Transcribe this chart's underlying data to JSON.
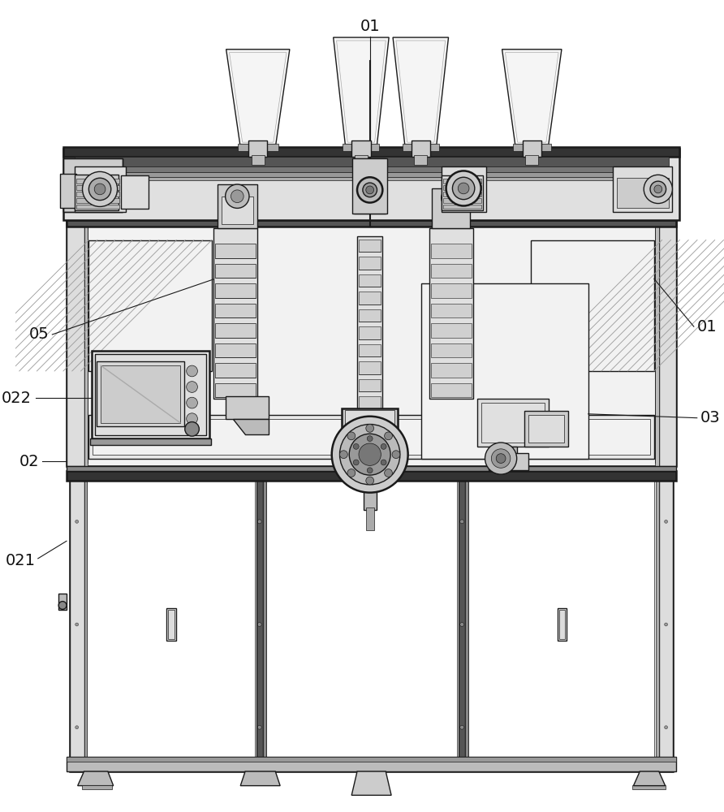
{
  "bg_color": "#ffffff",
  "lc": "#1a1a1a",
  "lc_med": "#555555",
  "fill_white": "#ffffff",
  "fill_vlight": "#f2f2f2",
  "fill_light": "#e8e8e8",
  "fill_mid": "#cccccc",
  "fill_dark": "#888888",
  "fill_vdark": "#444444",
  "figsize": [
    8.92,
    10.0
  ],
  "dpi": 100,
  "labels": {
    "01_top": "01",
    "01_right": "01",
    "02": "02",
    "021": "021",
    "022": "022",
    "03": "03",
    "05": "05"
  }
}
